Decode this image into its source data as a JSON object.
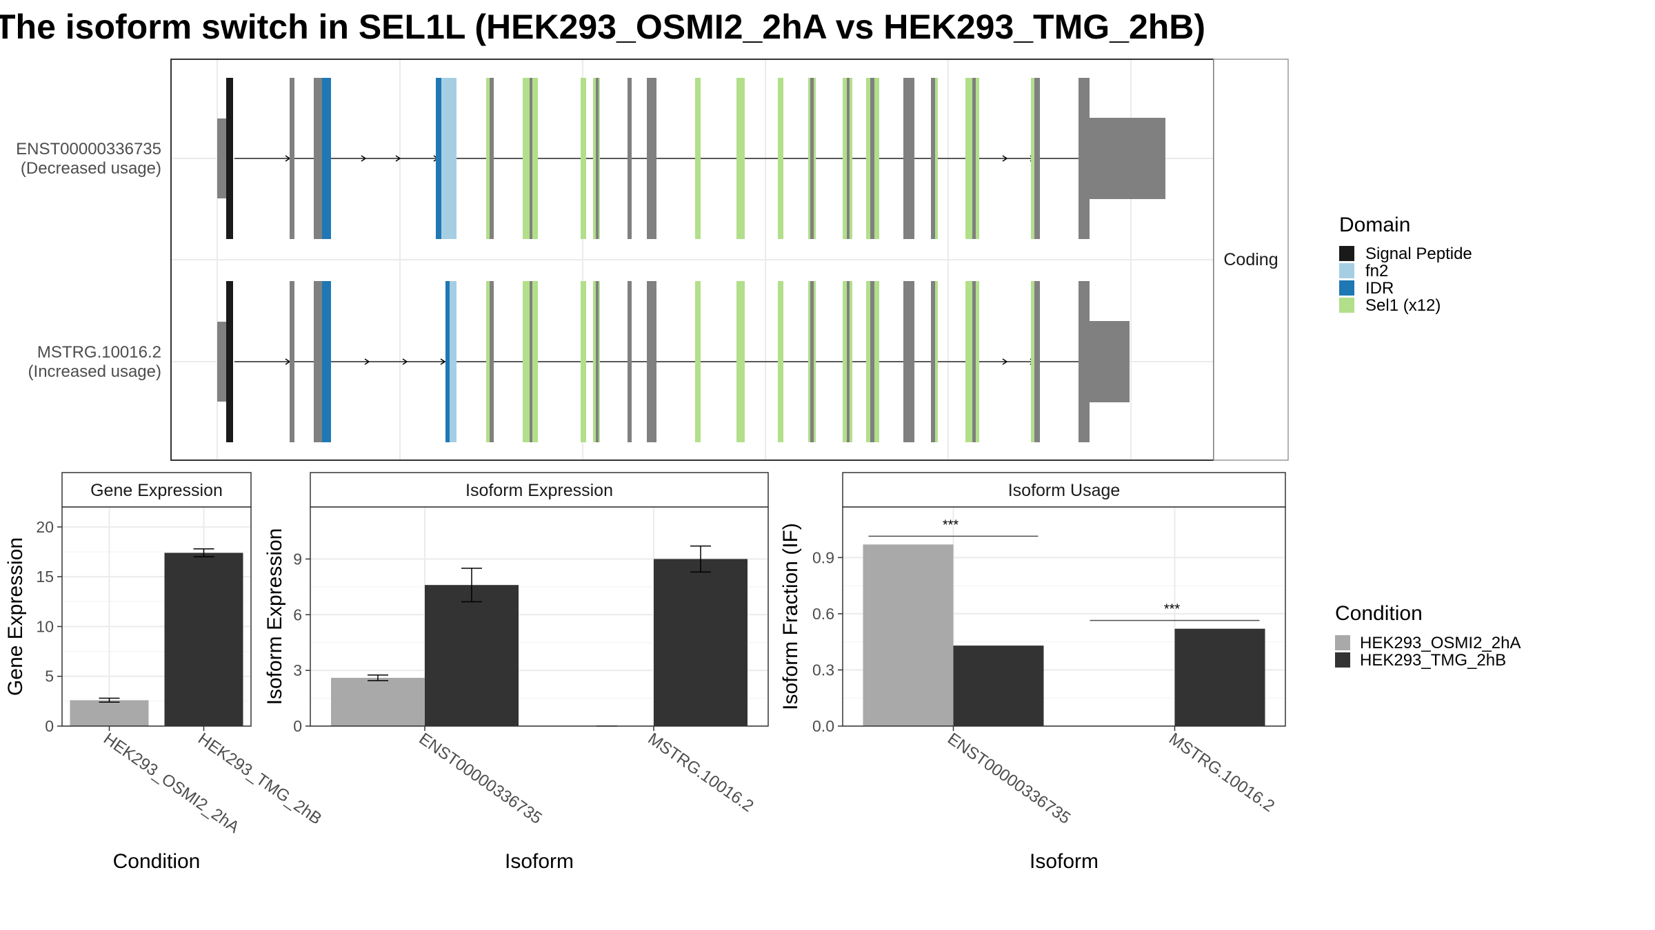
{
  "title": "The isoform switch in SEL1L (HEK293_OSMI2_2hA vs HEK293_TMG_2hB)",
  "colors": {
    "signal_peptide": "#1a1a1a",
    "fn2": "#a6cee3",
    "idr": "#1f78b4",
    "sel1": "#b2df8a",
    "noncoding_exon": "#808080",
    "cond_a": "#a9a9a9",
    "cond_b": "#333333",
    "strip_bg": "#ffffff",
    "grid": "#ebebeb"
  },
  "structure": {
    "strip_label": "Coding",
    "transcripts": [
      {
        "id": "ENST00000336735",
        "usage": "(Decreased usage)"
      },
      {
        "id": "MSTRG.10016.2",
        "usage": "(Increased usage)"
      }
    ]
  },
  "legend_domain": {
    "title": "Domain",
    "items": [
      {
        "label": "Signal Peptide",
        "color": "#1a1a1a"
      },
      {
        "label": "fn2",
        "color": "#a6cee3"
      },
      {
        "label": "IDR",
        "color": "#1f78b4"
      },
      {
        "label": "Sel1 (x12)",
        "color": "#b2df8a"
      }
    ]
  },
  "legend_condition": {
    "title": "Condition",
    "items": [
      {
        "label": "HEK293_OSMI2_2hA",
        "color": "#a9a9a9"
      },
      {
        "label": "HEK293_TMG_2hB",
        "color": "#333333"
      }
    ]
  },
  "chart_data": [
    {
      "type": "bar",
      "title": "Gene Expression",
      "xlabel": "Condition",
      "ylabel": "Gene Expression",
      "categories": [
        "HEK293_OSMI2_2hA",
        "HEK293_TMG_2hB"
      ],
      "values": [
        2.6,
        17.4
      ],
      "errors": [
        0.2,
        0.4
      ],
      "yticks": [
        0,
        5,
        10,
        15,
        20
      ],
      "ylim": [
        0,
        22
      ]
    },
    {
      "type": "bar",
      "title": "Isoform Expression",
      "xlabel": "Isoform",
      "ylabel": "Isoform Expression",
      "categories": [
        "ENST00000336735",
        "MSTRG.10016.2"
      ],
      "series": [
        {
          "name": "HEK293_OSMI2_2hA",
          "values": [
            2.6,
            0.0
          ],
          "errors": [
            0.15,
            0.0
          ]
        },
        {
          "name": "HEK293_TMG_2hB",
          "values": [
            7.6,
            9.0
          ],
          "errors": [
            0.9,
            0.7
          ]
        }
      ],
      "yticks": [
        0,
        3,
        6,
        9
      ],
      "ylim": [
        0,
        11.8
      ]
    },
    {
      "type": "bar",
      "title": "Isoform Usage",
      "xlabel": "Isoform",
      "ylabel": "Isoform Fraction (IF)",
      "categories": [
        "ENST00000336735",
        "MSTRG.10016.2"
      ],
      "series": [
        {
          "name": "HEK293_OSMI2_2hA",
          "values": [
            0.97,
            0.0
          ]
        },
        {
          "name": "HEK293_TMG_2hB",
          "values": [
            0.43,
            0.52
          ]
        }
      ],
      "significance": [
        "***",
        "***"
      ],
      "yticks": [
        "0.0",
        "0.3",
        "0.6",
        "0.9"
      ],
      "ylim": [
        0,
        1.17
      ]
    }
  ]
}
